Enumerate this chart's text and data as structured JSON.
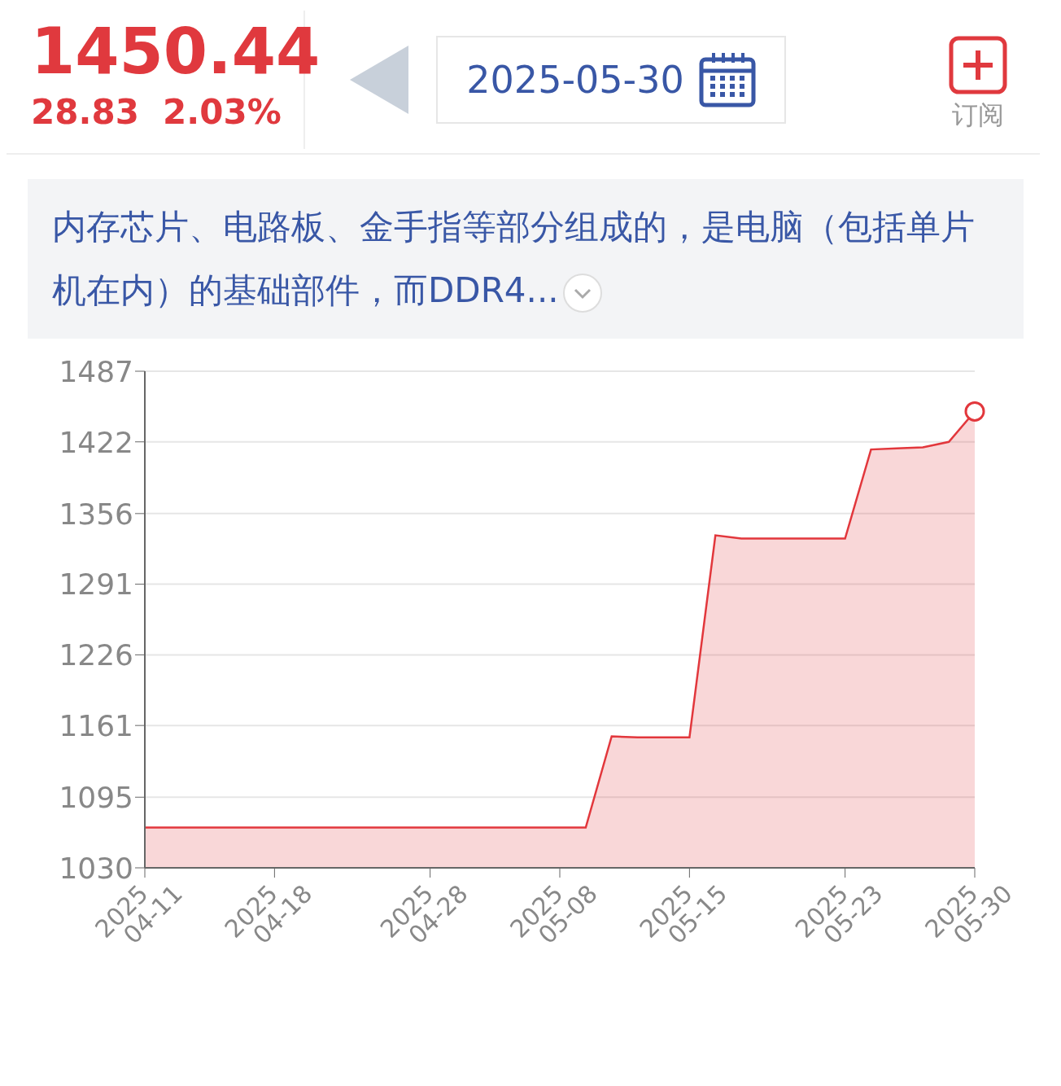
{
  "chart_data": {
    "type": "area",
    "title": "1450.44",
    "subtitle": "28.83  2.03%",
    "annotations": [
      "2025-05-30",
      "订阅",
      "内存芯片、电路板、金手指等部分组成的，是电脑（包括单片机在内）的基础部件，而DDR4..."
    ],
    "categories": [
      "2025\n04-11",
      null,
      null,
      null,
      null,
      "2025\n04-18",
      null,
      null,
      null,
      null,
      null,
      "2025\n04-28",
      null,
      null,
      null,
      null,
      "2025\n05-08",
      null,
      null,
      null,
      null,
      "2025\n05-15",
      null,
      null,
      null,
      null,
      null,
      "2025\n05-23",
      null,
      null,
      null,
      null,
      "2025\n05-30"
    ],
    "series": [
      {
        "color": "#e2373c",
        "values": [
          1067,
          1067,
          1067,
          1067,
          1067,
          1067,
          1067,
          1067,
          1067,
          1067,
          1067,
          1067,
          1067,
          1067,
          1067,
          1067,
          1067,
          1067,
          1151,
          1150,
          1150,
          1150,
          1336,
          1333,
          1333,
          1333,
          1333,
          1333,
          1415,
          1416,
          1417,
          1422,
          1450
        ]
      }
    ],
    "ylim": [
      1030,
      1487
    ],
    "yticks": [
      1030,
      1095,
      1161,
      1226,
      1291,
      1356,
      1422,
      1487
    ],
    "grid": "y",
    "marker": "none",
    "line_style": "solid"
  }
}
